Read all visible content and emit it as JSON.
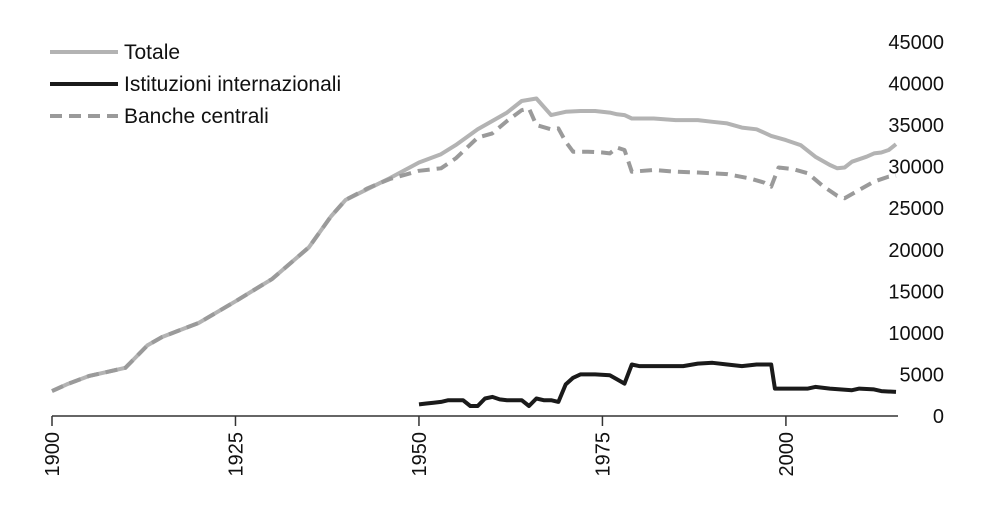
{
  "chart_data": {
    "type": "line",
    "title": "",
    "xlabel": "",
    "ylabel": "",
    "xlim": [
      1900,
      2015
    ],
    "ylim": [
      0,
      45000
    ],
    "y_axis_side": "right",
    "grid": false,
    "legend_position": "top-left",
    "x_ticks": [
      {
        "value": 1900,
        "label": "1900"
      },
      {
        "value": 1925,
        "label": "1925"
      },
      {
        "value": 1950,
        "label": "1950"
      },
      {
        "value": 1975,
        "label": "1975"
      },
      {
        "value": 2000,
        "label": "2000"
      }
    ],
    "y_ticks": [
      {
        "value": 0,
        "label": "0"
      },
      {
        "value": 5000,
        "label": "5000"
      },
      {
        "value": 10000,
        "label": "10000"
      },
      {
        "value": 15000,
        "label": "15000"
      },
      {
        "value": 20000,
        "label": "20000"
      },
      {
        "value": 25000,
        "label": "25000"
      },
      {
        "value": 30000,
        "label": "30000"
      },
      {
        "value": 35000,
        "label": "35000"
      },
      {
        "value": 40000,
        "label": "40000"
      },
      {
        "value": 45000,
        "label": "45000"
      }
    ],
    "series": [
      {
        "name": "Totale",
        "color": "#b3b3b3",
        "dash": "solid",
        "points": [
          [
            1900,
            3000
          ],
          [
            1902,
            3800
          ],
          [
            1905,
            4800
          ],
          [
            1910,
            5800
          ],
          [
            1913,
            8500
          ],
          [
            1915,
            9500
          ],
          [
            1920,
            11200
          ],
          [
            1925,
            13800
          ],
          [
            1930,
            16500
          ],
          [
            1935,
            20300
          ],
          [
            1938,
            24000
          ],
          [
            1940,
            26000
          ],
          [
            1943,
            27300
          ],
          [
            1946,
            28600
          ],
          [
            1950,
            30500
          ],
          [
            1953,
            31500
          ],
          [
            1955,
            32600
          ],
          [
            1958,
            34500
          ],
          [
            1960,
            35500
          ],
          [
            1962,
            36500
          ],
          [
            1964,
            37900
          ],
          [
            1966,
            38200
          ],
          [
            1968,
            36200
          ],
          [
            1970,
            36600
          ],
          [
            1972,
            36700
          ],
          [
            1974,
            36700
          ],
          [
            1976,
            36500
          ],
          [
            1977,
            36300
          ],
          [
            1978,
            36200
          ],
          [
            1979,
            35800
          ],
          [
            1982,
            35800
          ],
          [
            1985,
            35600
          ],
          [
            1988,
            35600
          ],
          [
            1990,
            35400
          ],
          [
            1992,
            35200
          ],
          [
            1994,
            34700
          ],
          [
            1996,
            34500
          ],
          [
            1998,
            33700
          ],
          [
            2000,
            33200
          ],
          [
            2002,
            32600
          ],
          [
            2004,
            31200
          ],
          [
            2006,
            30200
          ],
          [
            2007,
            29800
          ],
          [
            2008,
            29900
          ],
          [
            2009,
            30600
          ],
          [
            2011,
            31200
          ],
          [
            2012,
            31600
          ],
          [
            2013,
            31700
          ],
          [
            2014,
            32000
          ],
          [
            2015,
            32700
          ]
        ]
      },
      {
        "name": "Istituzioni internazionali",
        "color": "#1a1a1a",
        "dash": "solid",
        "points": [
          [
            1950,
            1400
          ],
          [
            1951,
            1500
          ],
          [
            1952,
            1600
          ],
          [
            1953,
            1700
          ],
          [
            1954,
            1900
          ],
          [
            1955,
            1900
          ],
          [
            1956,
            1900
          ],
          [
            1957,
            1200
          ],
          [
            1958,
            1200
          ],
          [
            1959,
            2100
          ],
          [
            1960,
            2300
          ],
          [
            1961,
            2000
          ],
          [
            1962,
            1900
          ],
          [
            1963,
            1900
          ],
          [
            1964,
            1900
          ],
          [
            1965,
            1200
          ],
          [
            1966,
            2100
          ],
          [
            1967,
            1900
          ],
          [
            1968,
            1900
          ],
          [
            1969,
            1700
          ],
          [
            1970,
            3800
          ],
          [
            1971,
            4600
          ],
          [
            1972,
            5000
          ],
          [
            1974,
            5000
          ],
          [
            1976,
            4900
          ],
          [
            1977,
            4400
          ],
          [
            1978,
            3900
          ],
          [
            1979,
            6200
          ],
          [
            1980,
            6000
          ],
          [
            1983,
            6000
          ],
          [
            1986,
            6000
          ],
          [
            1988,
            6300
          ],
          [
            1990,
            6400
          ],
          [
            1992,
            6200
          ],
          [
            1994,
            6000
          ],
          [
            1996,
            6200
          ],
          [
            1998,
            6200
          ],
          [
            1998.5,
            3300
          ],
          [
            2000,
            3300
          ],
          [
            2003,
            3300
          ],
          [
            2004,
            3500
          ],
          [
            2006,
            3300
          ],
          [
            2009,
            3100
          ],
          [
            2010,
            3300
          ],
          [
            2012,
            3200
          ],
          [
            2013,
            3000
          ],
          [
            2015,
            2900
          ]
        ]
      },
      {
        "name": "Banche centrali",
        "color": "#9a9a9a",
        "dash": "dashed",
        "points": [
          [
            1900,
            3000
          ],
          [
            1902,
            3800
          ],
          [
            1905,
            4800
          ],
          [
            1910,
            5800
          ],
          [
            1913,
            8500
          ],
          [
            1915,
            9500
          ],
          [
            1920,
            11200
          ],
          [
            1925,
            13800
          ],
          [
            1930,
            16500
          ],
          [
            1935,
            20300
          ],
          [
            1938,
            24000
          ],
          [
            1940,
            26000
          ],
          [
            1943,
            27400
          ],
          [
            1946,
            28500
          ],
          [
            1950,
            29500
          ],
          [
            1953,
            29800
          ],
          [
            1955,
            31000
          ],
          [
            1958,
            33500
          ],
          [
            1960,
            34000
          ],
          [
            1962,
            35500
          ],
          [
            1964,
            36800
          ],
          [
            1965,
            37000
          ],
          [
            1966,
            35000
          ],
          [
            1968,
            34500
          ],
          [
            1969,
            34600
          ],
          [
            1970,
            33000
          ],
          [
            1971,
            31800
          ],
          [
            1973,
            31800
          ],
          [
            1975,
            31700
          ],
          [
            1976,
            31600
          ],
          [
            1977,
            32300
          ],
          [
            1978,
            32000
          ],
          [
            1979,
            29400
          ],
          [
            1982,
            29600
          ],
          [
            1985,
            29400
          ],
          [
            1988,
            29300
          ],
          [
            1992,
            29100
          ],
          [
            1995,
            28600
          ],
          [
            1997,
            28100
          ],
          [
            1998,
            27600
          ],
          [
            1999,
            29900
          ],
          [
            2001,
            29700
          ],
          [
            2003,
            29200
          ],
          [
            2005,
            27700
          ],
          [
            2007,
            26500
          ],
          [
            2008,
            26200
          ],
          [
            2010,
            27200
          ],
          [
            2012,
            28200
          ],
          [
            2014,
            28800
          ],
          [
            2015,
            28900
          ]
        ]
      }
    ]
  }
}
